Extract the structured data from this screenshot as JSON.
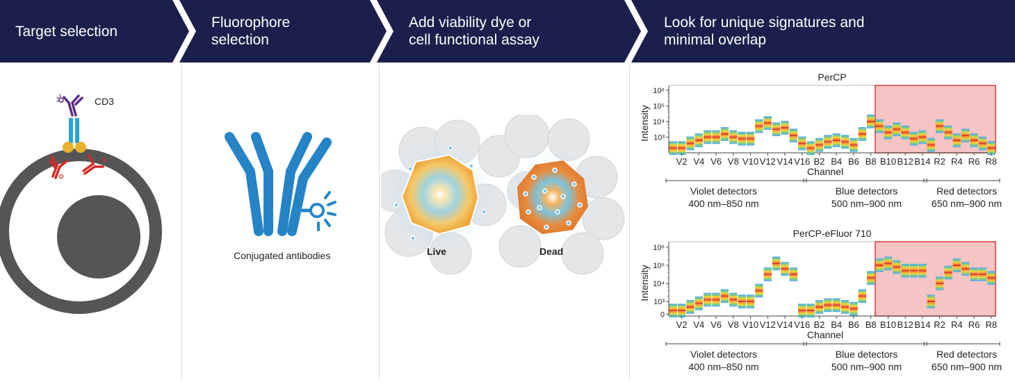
{
  "steps": [
    {
      "label_line1": "Target selection",
      "label_line2": ""
    },
    {
      "label_line1": "Fluorophore",
      "label_line2": "selection"
    },
    {
      "label_line1": "Add viability dye or",
      "label_line2": "cell functional assay"
    },
    {
      "label_line1": "Look for unique signatures and",
      "label_line2": "minimal overlap"
    }
  ],
  "colors": {
    "banner": "#1b1f4b",
    "antibody": "#2584c6",
    "highlight": "#f6c4c4",
    "highlight_border": "#d93a3a"
  },
  "panel1": {
    "marker_label": "CD3"
  },
  "panel2": {
    "caption": "Conjugated antibodies"
  },
  "panel3": {
    "live_label": "Live",
    "dead_label": "Dead"
  },
  "chart_data": [
    {
      "type": "heatmap",
      "title": "PerCP",
      "ylabel": "Intensity",
      "xlabel": "Channel",
      "y_scale": "log",
      "y_ticks": [
        "10⁶",
        "10⁵",
        "10⁴",
        "10³"
      ],
      "x_tick_labels": [
        "V2",
        "V4",
        "V6",
        "V8",
        "V10",
        "V12",
        "V14",
        "V16",
        "B2",
        "B4",
        "B6",
        "B8",
        "B10",
        "B12",
        "B14",
        "R2",
        "R4",
        "R6",
        "R8"
      ],
      "channels": [
        "V1",
        "V2",
        "V3",
        "V4",
        "V5",
        "V6",
        "V7",
        "V8",
        "V9",
        "V10",
        "V11",
        "V12",
        "V13",
        "V14",
        "V15",
        "V16",
        "B1",
        "B2",
        "B3",
        "B4",
        "B5",
        "B6",
        "B7",
        "B8",
        "B9",
        "B10",
        "B11",
        "B12",
        "B13",
        "B14",
        "R1",
        "R2",
        "R3",
        "R4",
        "R5",
        "R6",
        "R7",
        "R8"
      ],
      "log_intensity": [
        2.3,
        2.3,
        2.6,
        2.8,
        3.0,
        3.0,
        3.2,
        3.0,
        2.9,
        2.9,
        3.7,
        3.9,
        3.5,
        3.6,
        3.1,
        2.6,
        2.3,
        2.5,
        2.7,
        2.8,
        2.7,
        2.5,
        3.2,
        4.0,
        3.7,
        3.3,
        3.5,
        3.3,
        2.9,
        3.0,
        2.5,
        3.7,
        3.3,
        2.8,
        3.1,
        2.8,
        2.6,
        2.3
      ],
      "highlight_from_channel": "B9",
      "detector_groups": [
        {
          "name": "Violet detectors",
          "range": "400 nm–850 nm"
        },
        {
          "name": "Blue detectors",
          "range": "500 nm–900 nm"
        },
        {
          "name": "Red detectors",
          "range": "650 nm–900 nm"
        }
      ]
    },
    {
      "type": "heatmap",
      "title": "PerCP-eFluor 710",
      "ylabel": "Intensity",
      "xlabel": "Channel",
      "y_scale": "log",
      "y_ticks": [
        "10⁶",
        "10⁵",
        "10⁴",
        "10³",
        "0"
      ],
      "x_tick_labels": [
        "V2",
        "V4",
        "V6",
        "V8",
        "V10",
        "V12",
        "V14",
        "V16",
        "B2",
        "B4",
        "B6",
        "B8",
        "B10",
        "B12",
        "B14",
        "R2",
        "R4",
        "R6",
        "R8"
      ],
      "channels": [
        "V1",
        "V2",
        "V3",
        "V4",
        "V5",
        "V6",
        "V7",
        "V8",
        "V9",
        "V10",
        "V11",
        "V12",
        "V13",
        "V14",
        "V15",
        "V16",
        "B1",
        "B2",
        "B3",
        "B4",
        "B5",
        "B6",
        "B7",
        "B8",
        "B9",
        "B10",
        "B11",
        "B12",
        "B13",
        "B14",
        "R1",
        "R2",
        "R3",
        "R4",
        "R5",
        "R6",
        "R7",
        "R8"
      ],
      "log_intensity": [
        2.5,
        2.5,
        2.7,
        2.9,
        3.1,
        3.1,
        3.3,
        3.1,
        3.0,
        3.0,
        3.6,
        4.5,
        5.1,
        4.8,
        4.5,
        2.5,
        2.5,
        2.7,
        2.8,
        2.8,
        2.7,
        2.6,
        3.3,
        4.3,
        5.0,
        5.1,
        4.9,
        4.7,
        4.7,
        4.7,
        3.0,
        4.0,
        4.6,
        5.0,
        4.8,
        4.5,
        4.5,
        4.3
      ],
      "highlight_from_channel": "B9",
      "detector_groups": [
        {
          "name": "Violet detectors",
          "range": "400 nm–850 nm"
        },
        {
          "name": "Blue detectors",
          "range": "500 nm–900 nm"
        },
        {
          "name": "Red detectors",
          "range": "650 nm–900 nm"
        }
      ]
    }
  ]
}
